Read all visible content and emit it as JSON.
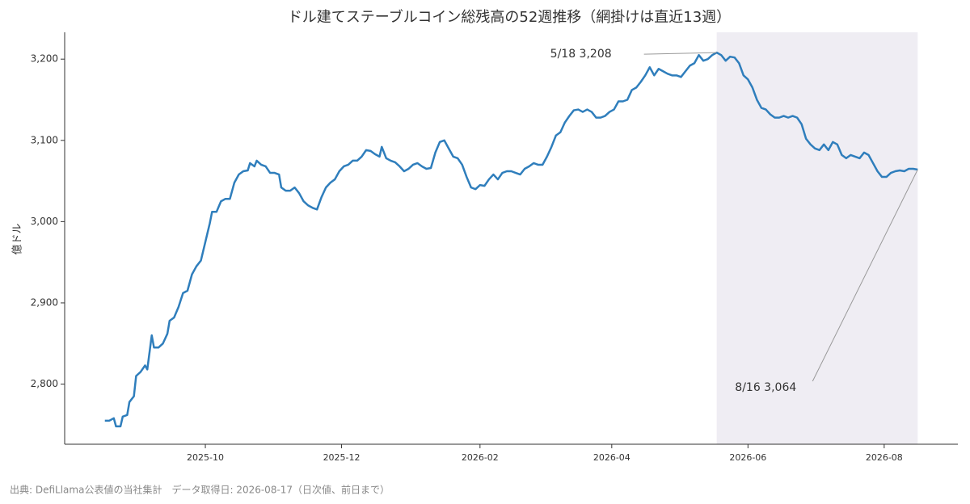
{
  "chart_data": {
    "type": "line",
    "title": "ドル建てステーブルコイン総残高の52週推移（網掛けは直近13週）",
    "y_label": "億ドル",
    "footer": "出典: DefiLlama公表値の当社集計　データ取得日: 2026-08-17（日次値、前日まで）",
    "xlim": [
      "2025-07-30",
      "2026-09-03"
    ],
    "xticks": [
      {
        "value": "2025-10-01",
        "label": "2025-10"
      },
      {
        "value": "2025-12-01",
        "label": "2025-12"
      },
      {
        "value": "2026-02-01",
        "label": "2026-02"
      },
      {
        "value": "2026-04-01",
        "label": "2026-04"
      },
      {
        "value": "2026-06-01",
        "label": "2026-06"
      },
      {
        "value": "2026-08-01",
        "label": "2026-08"
      }
    ],
    "ylim": [
      2726,
      3233
    ],
    "yticks": [
      {
        "value": 2800,
        "label": "2,800"
      },
      {
        "value": 2900,
        "label": "2,900"
      },
      {
        "value": 3000,
        "label": "3,000"
      },
      {
        "value": 3100,
        "label": "3,100"
      },
      {
        "value": 3200,
        "label": "3,200"
      }
    ],
    "highlight": {
      "start": "2026-05-18",
      "end": "2026-08-16",
      "color": "#efedf3"
    },
    "x": [
      "2025-08-17",
      "2025-08-19",
      "2025-08-21",
      "2025-08-22",
      "2025-08-24",
      "2025-08-25",
      "2025-08-27",
      "2025-08-28",
      "2025-08-30",
      "2025-08-31",
      "2025-09-02",
      "2025-09-04",
      "2025-09-05",
      "2025-09-07",
      "2025-09-08",
      "2025-09-10",
      "2025-09-12",
      "2025-09-14",
      "2025-09-15",
      "2025-09-17",
      "2025-09-19",
      "2025-09-21",
      "2025-09-23",
      "2025-09-25",
      "2025-09-27",
      "2025-09-29",
      "2025-10-01",
      "2025-10-03",
      "2025-10-04",
      "2025-10-06",
      "2025-10-08",
      "2025-10-10",
      "2025-10-12",
      "2025-10-14",
      "2025-10-16",
      "2025-10-18",
      "2025-10-20",
      "2025-10-21",
      "2025-10-23",
      "2025-10-24",
      "2025-10-26",
      "2025-10-28",
      "2025-10-30",
      "2025-11-01",
      "2025-11-03",
      "2025-11-04",
      "2025-11-06",
      "2025-11-08",
      "2025-11-10",
      "2025-11-12",
      "2025-11-14",
      "2025-11-16",
      "2025-11-18",
      "2025-11-20",
      "2025-11-22",
      "2025-11-24",
      "2025-11-26",
      "2025-11-28",
      "2025-11-30",
      "2025-12-02",
      "2025-12-04",
      "2025-12-06",
      "2025-12-08",
      "2025-12-10",
      "2025-12-12",
      "2025-12-14",
      "2025-12-16",
      "2025-12-18",
      "2025-12-19",
      "2025-12-21",
      "2025-12-23",
      "2025-12-25",
      "2025-12-27",
      "2025-12-29",
      "2025-12-31",
      "2026-01-02",
      "2026-01-04",
      "2026-01-06",
      "2026-01-08",
      "2026-01-10",
      "2026-01-12",
      "2026-01-14",
      "2026-01-16",
      "2026-01-18",
      "2026-01-20",
      "2026-01-22",
      "2026-01-24",
      "2026-01-26",
      "2026-01-28",
      "2026-01-30",
      "2026-02-01",
      "2026-02-03",
      "2026-02-05",
      "2026-02-07",
      "2026-02-09",
      "2026-02-11",
      "2026-02-13",
      "2026-02-15",
      "2026-02-17",
      "2026-02-19",
      "2026-02-21",
      "2026-02-23",
      "2026-02-25",
      "2026-02-27",
      "2026-03-01",
      "2026-03-03",
      "2026-03-05",
      "2026-03-07",
      "2026-03-09",
      "2026-03-11",
      "2026-03-13",
      "2026-03-15",
      "2026-03-17",
      "2026-03-19",
      "2026-03-21",
      "2026-03-23",
      "2026-03-25",
      "2026-03-27",
      "2026-03-29",
      "2026-03-31",
      "2026-04-02",
      "2026-04-04",
      "2026-04-06",
      "2026-04-08",
      "2026-04-10",
      "2026-04-12",
      "2026-04-14",
      "2026-04-16",
      "2026-04-18",
      "2026-04-20",
      "2026-04-22",
      "2026-04-24",
      "2026-04-26",
      "2026-04-28",
      "2026-04-30",
      "2026-05-02",
      "2026-05-04",
      "2026-05-06",
      "2026-05-08",
      "2026-05-10",
      "2026-05-12",
      "2026-05-14",
      "2026-05-16",
      "2026-05-18",
      "2026-05-20",
      "2026-05-22",
      "2026-05-24",
      "2026-05-26",
      "2026-05-28",
      "2026-05-30",
      "2026-06-01",
      "2026-06-03",
      "2026-06-05",
      "2026-06-07",
      "2026-06-09",
      "2026-06-11",
      "2026-06-13",
      "2026-06-15",
      "2026-06-17",
      "2026-06-19",
      "2026-06-21",
      "2026-06-23",
      "2026-06-25",
      "2026-06-27",
      "2026-06-29",
      "2026-07-01",
      "2026-07-03",
      "2026-07-05",
      "2026-07-07",
      "2026-07-09",
      "2026-07-11",
      "2026-07-13",
      "2026-07-15",
      "2026-07-17",
      "2026-07-19",
      "2026-07-21",
      "2026-07-23",
      "2026-07-25",
      "2026-07-27",
      "2026-07-29",
      "2026-07-31",
      "2026-08-02",
      "2026-08-04",
      "2026-08-06",
      "2026-08-08",
      "2026-08-10",
      "2026-08-12",
      "2026-08-14",
      "2026-08-16"
    ],
    "series": [
      {
        "color": "#2f7ebc",
        "values": [
          2755,
          2755,
          2758,
          2748,
          2748,
          2760,
          2762,
          2778,
          2785,
          2810,
          2815,
          2823,
          2818,
          2860,
          2845,
          2845,
          2850,
          2862,
          2878,
          2882,
          2895,
          2912,
          2915,
          2935,
          2945,
          2952,
          2975,
          2998,
          3012,
          3012,
          3025,
          3028,
          3028,
          3048,
          3058,
          3062,
          3063,
          3072,
          3068,
          3075,
          3070,
          3068,
          3060,
          3060,
          3058,
          3042,
          3038,
          3038,
          3042,
          3035,
          3025,
          3020,
          3017,
          3015,
          3030,
          3042,
          3048,
          3052,
          3062,
          3068,
          3070,
          3075,
          3075,
          3080,
          3088,
          3087,
          3083,
          3080,
          3092,
          3078,
          3075,
          3073,
          3068,
          3062,
          3065,
          3070,
          3072,
          3068,
          3065,
          3066,
          3085,
          3098,
          3100,
          3090,
          3080,
          3078,
          3070,
          3055,
          3042,
          3040,
          3045,
          3044,
          3052,
          3058,
          3052,
          3060,
          3062,
          3062,
          3060,
          3058,
          3065,
          3068,
          3072,
          3070,
          3070,
          3080,
          3092,
          3106,
          3110,
          3122,
          3130,
          3137,
          3138,
          3135,
          3138,
          3135,
          3128,
          3128,
          3130,
          3135,
          3138,
          3148,
          3148,
          3150,
          3162,
          3165,
          3172,
          3180,
          3190,
          3180,
          3188,
          3185,
          3182,
          3180,
          3180,
          3178,
          3185,
          3192,
          3195,
          3205,
          3198,
          3200,
          3205,
          3208,
          3205,
          3198,
          3203,
          3202,
          3195,
          3180,
          3175,
          3165,
          3150,
          3140,
          3138,
          3132,
          3128,
          3128,
          3130,
          3128,
          3130,
          3128,
          3120,
          3102,
          3095,
          3090,
          3088,
          3095,
          3088,
          3098,
          3095,
          3082,
          3078,
          3082,
          3080,
          3078,
          3085,
          3082,
          3072,
          3062,
          3055,
          3055,
          3060,
          3062,
          3063,
          3062,
          3065,
          3065,
          3064
        ]
      }
    ],
    "annotations": [
      {
        "text": "5/18 3,208",
        "x": "2026-05-18",
        "y": 3208
      },
      {
        "text": "8/16 3,064",
        "x": "2026-08-16",
        "y": 3064
      }
    ]
  }
}
